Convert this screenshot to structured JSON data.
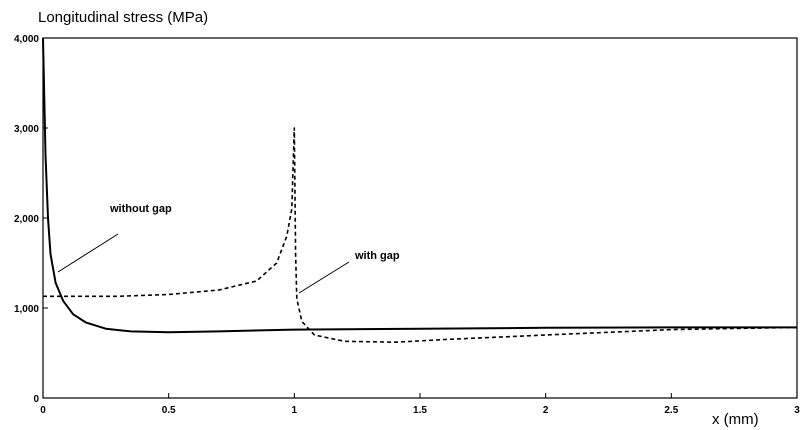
{
  "chart_data": {
    "type": "line",
    "title": "",
    "ylabel": "Longitudinal stress (MPa)",
    "xlabel": "x (mm)",
    "xlim": [
      0,
      3
    ],
    "ylim": [
      0,
      4000
    ],
    "x_ticks": [
      0,
      0.5,
      1,
      1.5,
      2,
      2.5,
      3
    ],
    "x_tick_labels": [
      "0",
      "0.5",
      "1",
      "1.5",
      "2",
      "2.5",
      "3"
    ],
    "y_ticks": [
      0,
      1000,
      2000,
      3000,
      4000
    ],
    "y_tick_labels": [
      "0",
      "1,000",
      "2,000",
      "3,000",
      "4,000"
    ],
    "grid": false,
    "series": [
      {
        "name": "without gap",
        "line_style": "solid",
        "points": [
          [
            0,
            4000
          ],
          [
            0.01,
            2700
          ],
          [
            0.02,
            2000
          ],
          [
            0.03,
            1600
          ],
          [
            0.05,
            1280
          ],
          [
            0.08,
            1080
          ],
          [
            0.12,
            930
          ],
          [
            0.17,
            840
          ],
          [
            0.25,
            770
          ],
          [
            0.35,
            740
          ],
          [
            0.5,
            730
          ],
          [
            0.7,
            740
          ],
          [
            1.0,
            760
          ],
          [
            1.5,
            770
          ],
          [
            2.0,
            780
          ],
          [
            2.5,
            785
          ],
          [
            3.0,
            785
          ]
        ]
      },
      {
        "name": "with gap",
        "line_style": "dashed",
        "points": [
          [
            0,
            1130
          ],
          [
            0.3,
            1130
          ],
          [
            0.5,
            1150
          ],
          [
            0.7,
            1200
          ],
          [
            0.85,
            1300
          ],
          [
            0.93,
            1500
          ],
          [
            0.97,
            1800
          ],
          [
            0.99,
            2100
          ],
          [
            1.0,
            3000
          ],
          [
            1.005,
            1600
          ],
          [
            1.01,
            1100
          ],
          [
            1.03,
            850
          ],
          [
            1.08,
            700
          ],
          [
            1.2,
            630
          ],
          [
            1.4,
            620
          ],
          [
            1.6,
            650
          ],
          [
            2.0,
            700
          ],
          [
            2.5,
            760
          ],
          [
            3.0,
            785
          ]
        ]
      }
    ],
    "annotations": [
      {
        "text": "without gap",
        "points_to": [
          0.05,
          1280
        ]
      },
      {
        "text": "with gap",
        "points_to": [
          1.02,
          1150
        ]
      }
    ]
  }
}
